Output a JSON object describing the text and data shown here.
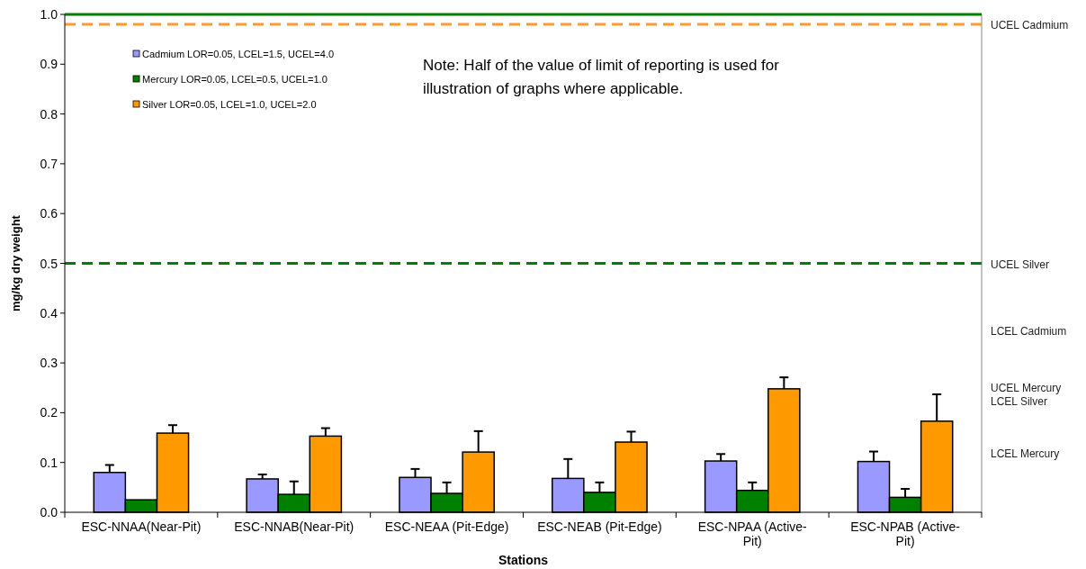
{
  "chart_data": {
    "type": "bar",
    "xlabel": "Stations",
    "ylabel": "mg/kg dry weight",
    "categories": [
      "ESC-NNAA(Near-Pit)",
      "ESC-NNAB(Near-Pit)",
      "ESC-NEAA (Pit-Edge)",
      "ESC-NEAB (Pit-Edge)",
      "ESC-NPAA (Active-Pit)",
      "ESC-NPAB (Active-Pit)"
    ],
    "series": [
      {
        "name": "Cadmium LOR=0.05, LCEL=1.5, UCEL=4.0",
        "color": "#9999ff",
        "values": [
          0.08,
          0.067,
          0.07,
          0.068,
          0.103,
          0.102
        ],
        "errors": [
          [
            0.08,
            0.095
          ],
          [
            0.067,
            0.076
          ],
          [
            0.07,
            0.087
          ],
          [
            0.068,
            0.107
          ],
          [
            0.103,
            0.117
          ],
          [
            0.102,
            0.122
          ]
        ]
      },
      {
        "name": "Mercury LOR=0.05, LCEL=0.5, UCEL=1.0",
        "color": "#008000",
        "values": [
          0.025,
          0.036,
          0.038,
          0.04,
          0.044,
          0.03
        ],
        "errors": [
          null,
          [
            0.036,
            0.062
          ],
          [
            0.038,
            0.06
          ],
          [
            0.04,
            0.06
          ],
          [
            0.044,
            0.06
          ],
          [
            0.03,
            0.047
          ]
        ]
      },
      {
        "name": "Silver LOR=0.05, LCEL=1.0, UCEL=2.0",
        "color": "#ff9900",
        "values": [
          0.159,
          0.153,
          0.121,
          0.141,
          0.248,
          0.183
        ],
        "errors": [
          [
            0.159,
            0.175
          ],
          [
            0.153,
            0.169
          ],
          [
            0.121,
            0.163
          ],
          [
            0.141,
            0.162
          ],
          [
            0.248,
            0.271
          ],
          [
            0.183,
            0.237
          ]
        ]
      }
    ],
    "ylim": [
      0,
      1
    ],
    "yticks": [
      {
        "value": 0,
        "label": "0.0"
      },
      0.1,
      0.2,
      0.3,
      0.4,
      0.5,
      0.6,
      0.7,
      0.8,
      0.9,
      {
        "value": 1,
        "label": "1.0"
      }
    ],
    "ref_lines": [
      {
        "axis": "y",
        "value": 1.0,
        "color": "#008000",
        "line_style": "solid"
      },
      {
        "axis": "y",
        "value": 0.98,
        "label": "UCEL Cadmium",
        "color": "#ff9933",
        "line_style": "dashed"
      },
      {
        "axis": "y",
        "value": 0.5,
        "label": "UCEL Silver",
        "color": "#008000",
        "line_style": "dashed"
      }
    ],
    "annotations": [
      "Note: Half of the value of limit of reporting is used for illustration of graphs where applicable.",
      "LCEL Cadmium",
      "UCEL Mercury",
      "LCEL Silver",
      "LCEL Mercury"
    ],
    "grid": false,
    "legend": "top left"
  }
}
